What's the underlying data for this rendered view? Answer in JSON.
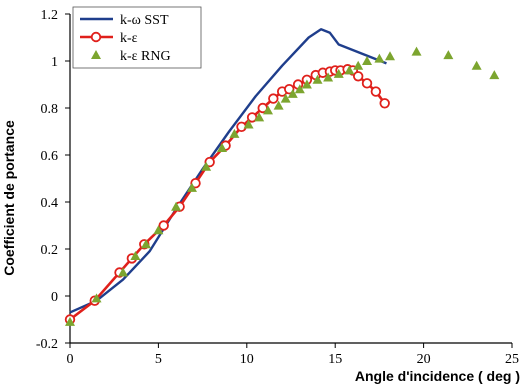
{
  "chart_data": {
    "type": "line",
    "xlabel": "Angle d'incidence ( deg )",
    "ylabel": "Coefficient de portance",
    "xlim": [
      0,
      25
    ],
    "ylim": [
      -0.2,
      1.2
    ],
    "xticks": [
      0,
      5,
      10,
      15,
      20,
      25
    ],
    "yticks": [
      -0.2,
      0,
      0.2,
      0.4,
      0.6,
      0.8,
      1,
      1.2
    ],
    "ytick_labels": [
      "-0.2",
      "0",
      "0.2",
      "0.4",
      "0.6",
      "0.8",
      "1",
      "1.2"
    ],
    "xtick_labels": [
      "0",
      "5",
      "10",
      "15",
      "20",
      "25"
    ],
    "grid": false,
    "legend_position": "top-left",
    "series": [
      {
        "name": "k-ω SST",
        "style": "line",
        "color": "#1f3e8c",
        "x": [
          0,
          1.5,
          3,
          4.5,
          6,
          7.5,
          9,
          10.5,
          12,
          13.5,
          14.2,
          14.7,
          15.2,
          17.9
        ],
        "y": [
          -0.07,
          -0.02,
          0.07,
          0.19,
          0.37,
          0.54,
          0.7,
          0.85,
          0.98,
          1.1,
          1.135,
          1.12,
          1.07,
          0.99
        ]
      },
      {
        "name": "k-ε",
        "style": "line-circle",
        "color": "#e0201b",
        "x": [
          0,
          1.4,
          2.8,
          3.5,
          4.2,
          5.3,
          6.2,
          7.1,
          7.9,
          8.8,
          9.7,
          10.3,
          10.9,
          11.5,
          12.0,
          12.4,
          12.9,
          13.4,
          13.9,
          14.3,
          14.7,
          15.0,
          15.3,
          15.7,
          16.0,
          16.3,
          16.8,
          17.3,
          17.8
        ],
        "y": [
          -0.1,
          -0.02,
          0.1,
          0.16,
          0.22,
          0.3,
          0.38,
          0.48,
          0.57,
          0.64,
          0.72,
          0.76,
          0.8,
          0.84,
          0.87,
          0.88,
          0.9,
          0.92,
          0.94,
          0.95,
          0.955,
          0.96,
          0.96,
          0.965,
          0.96,
          0.935,
          0.905,
          0.87,
          0.82
        ]
      },
      {
        "name": "k-ε RNG",
        "style": "triangle",
        "color": "#7ca52f",
        "x": [
          0,
          1.5,
          3.0,
          3.7,
          4.3,
          5.0,
          6.0,
          6.9,
          7.7,
          8.6,
          9.3,
          10.1,
          10.7,
          11.2,
          11.8,
          12.2,
          12.6,
          13.0,
          13.4,
          14.0,
          14.6,
          15.2,
          15.8,
          16.3,
          16.8,
          17.5,
          18.1,
          19.6,
          21.4,
          23.0,
          24.0
        ],
        "y": [
          -0.11,
          -0.01,
          0.1,
          0.17,
          0.22,
          0.28,
          0.38,
          0.46,
          0.55,
          0.63,
          0.69,
          0.73,
          0.76,
          0.79,
          0.81,
          0.84,
          0.86,
          0.88,
          0.9,
          0.92,
          0.93,
          0.945,
          0.96,
          0.98,
          1.0,
          1.01,
          1.02,
          1.04,
          1.025,
          0.98,
          0.94
        ]
      }
    ]
  }
}
